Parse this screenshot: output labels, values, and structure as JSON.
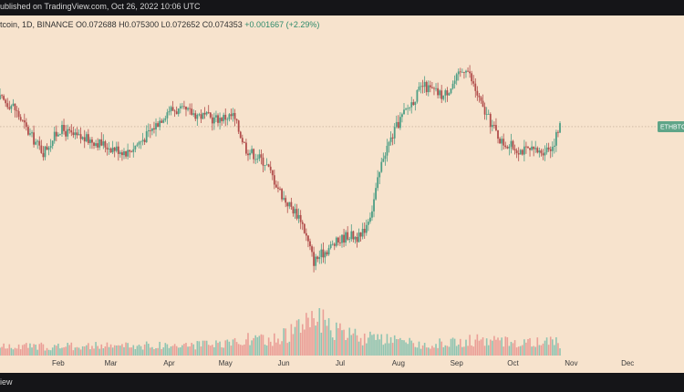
{
  "header": {
    "published": "ublished on TradingView.com, Oct 26, 2022 10:06 UTC"
  },
  "legend": {
    "symbol": "tcoin, 1D, BINANCE",
    "open": "O0.072688",
    "high": "H0.075300",
    "low": "L0.072652",
    "close": "C0.074353",
    "change": "+0.001667 (+2.29%)"
  },
  "footer": {
    "brand": "iew"
  },
  "colors": {
    "up": "#4d9e85",
    "down": "#b14d4b",
    "vol_up": "#8fc4b1",
    "vol_down": "#ea9f97",
    "tag": "#5fa588"
  },
  "chart_data": {
    "type": "candlestick",
    "x_range": [
      "2022-01-01",
      "2022-12-31"
    ],
    "xticks": [
      "Feb",
      "Mar",
      "Apr",
      "May",
      "Jun",
      "Jul",
      "Aug",
      "Sep",
      "Oct",
      "Nov",
      "Dec"
    ],
    "last_price_tag": "ETHBTC",
    "last_close": 0.074353,
    "ylim": [
      0.048,
      0.088
    ],
    "close_path": [
      {
        "date": "2022-01-01",
        "close": 0.0785
      },
      {
        "date": "2022-01-08",
        "close": 0.0775
      },
      {
        "date": "2022-01-16",
        "close": 0.0735
      },
      {
        "date": "2022-01-24",
        "close": 0.0705
      },
      {
        "date": "2022-02-02",
        "close": 0.074
      },
      {
        "date": "2022-02-10",
        "close": 0.0728
      },
      {
        "date": "2022-02-20",
        "close": 0.0722
      },
      {
        "date": "2022-03-01",
        "close": 0.0712
      },
      {
        "date": "2022-03-10",
        "close": 0.0705
      },
      {
        "date": "2022-03-20",
        "close": 0.073
      },
      {
        "date": "2022-04-01",
        "close": 0.077
      },
      {
        "date": "2022-04-12",
        "close": 0.0765
      },
      {
        "date": "2022-04-25",
        "close": 0.0755
      },
      {
        "date": "2022-05-05",
        "close": 0.076
      },
      {
        "date": "2022-05-12",
        "close": 0.071
      },
      {
        "date": "2022-05-22",
        "close": 0.069
      },
      {
        "date": "2022-06-01",
        "close": 0.0635
      },
      {
        "date": "2022-06-10",
        "close": 0.0605
      },
      {
        "date": "2022-06-17",
        "close": 0.054
      },
      {
        "date": "2022-06-25",
        "close": 0.056
      },
      {
        "date": "2022-07-05",
        "close": 0.058
      },
      {
        "date": "2022-07-12",
        "close": 0.0575
      },
      {
        "date": "2022-07-18",
        "close": 0.062
      },
      {
        "date": "2022-07-24",
        "close": 0.07
      },
      {
        "date": "2022-08-02",
        "close": 0.0755
      },
      {
        "date": "2022-08-14",
        "close": 0.0805
      },
      {
        "date": "2022-08-25",
        "close": 0.079
      },
      {
        "date": "2022-09-06",
        "close": 0.0835
      },
      {
        "date": "2022-09-15",
        "close": 0.077
      },
      {
        "date": "2022-09-25",
        "close": 0.072
      },
      {
        "date": "2022-10-05",
        "close": 0.0708
      },
      {
        "date": "2022-10-15",
        "close": 0.0705
      },
      {
        "date": "2022-10-22",
        "close": 0.0715
      },
      {
        "date": "2022-10-26",
        "close": 0.074353
      }
    ],
    "volume_path": [
      {
        "date": "2022-01-01",
        "volume": 0.8
      },
      {
        "date": "2022-05-01",
        "volume": 1.0
      },
      {
        "date": "2022-05-10",
        "volume": 1.6
      },
      {
        "date": "2022-05-25",
        "volume": 1.3
      },
      {
        "date": "2022-06-10",
        "volume": 2.6
      },
      {
        "date": "2022-06-16",
        "volume": 4.2
      },
      {
        "date": "2022-06-25",
        "volume": 2.4
      },
      {
        "date": "2022-07-15",
        "volume": 1.6
      },
      {
        "date": "2022-08-15",
        "volume": 1.0
      },
      {
        "date": "2022-09-10",
        "volume": 1.4
      },
      {
        "date": "2022-10-26",
        "volume": 1.2
      }
    ]
  }
}
